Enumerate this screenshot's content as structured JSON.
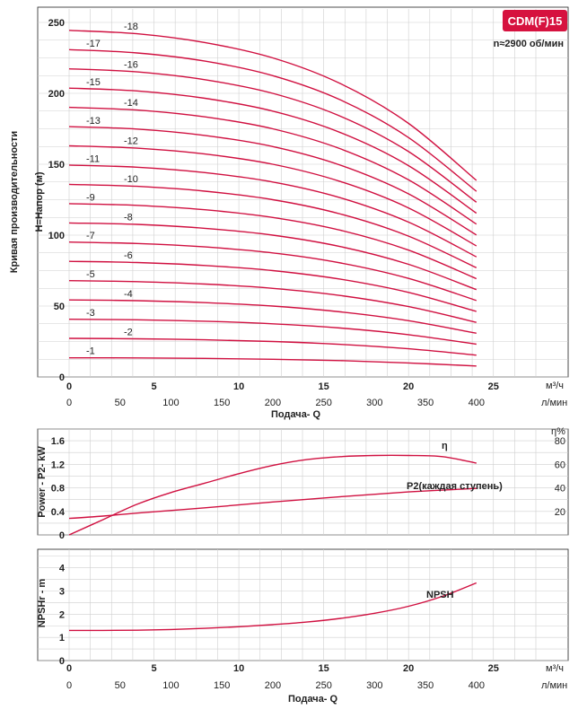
{
  "badge": {
    "model": "CDM(F)15",
    "color": "#d6123f"
  },
  "speed_note": "n≈2900 об/мин",
  "side_title": "Кривая производительности",
  "units": {
    "m3h": "м³/ч",
    "lmin": "л/мин",
    "eta": "η%"
  },
  "xlabel": "Подача- Q",
  "colors": {
    "curve": "#d01040",
    "grid": "#cfcfcf"
  },
  "chart_data": [
    {
      "type": "line",
      "ylabel": "H=Напор (м)",
      "x_m3h_ticks": [
        "0",
        "5",
        "10",
        "15",
        "20",
        "25"
      ],
      "x_lmin_ticks": [
        "0",
        "50",
        "100",
        "150",
        "200",
        "250",
        "300",
        "350",
        "400"
      ],
      "xlim_m3h": [
        0,
        27.5
      ],
      "y_ticks": [
        "0",
        "50",
        "100",
        "150",
        "200",
        "250"
      ],
      "ylim": [
        0,
        255
      ],
      "grid": true,
      "x": [
        0,
        4,
        8,
        12,
        16,
        20,
        24
      ],
      "series": [
        {
          "name": "-1",
          "values": [
            13.5,
            13.4,
            13.1,
            12.5,
            11.5,
            9.9,
            7.7
          ]
        },
        {
          "name": "-2",
          "values": [
            27.2,
            26.9,
            26.2,
            25.0,
            23.0,
            19.9,
            15.4
          ]
        },
        {
          "name": "-3",
          "values": [
            40.7,
            40.3,
            39.3,
            37.5,
            34.5,
            29.8,
            23.1
          ]
        },
        {
          "name": "-4",
          "values": [
            54.3,
            53.8,
            52.4,
            50.0,
            45.9,
            39.7,
            30.8
          ]
        },
        {
          "name": "-5",
          "values": [
            67.9,
            67.2,
            65.5,
            62.5,
            57.4,
            49.6,
            38.5
          ]
        },
        {
          "name": "-6",
          "values": [
            81.5,
            80.7,
            78.6,
            75.0,
            68.9,
            59.6,
            46.2
          ]
        },
        {
          "name": "-7",
          "values": [
            95.1,
            94.1,
            91.7,
            87.5,
            80.4,
            69.5,
            53.9
          ]
        },
        {
          "name": "-8",
          "values": [
            108.6,
            107.6,
            104.8,
            100.0,
            91.9,
            79.4,
            61.6
          ]
        },
        {
          "name": "-9",
          "values": [
            122.2,
            121.0,
            117.9,
            112.5,
            103.4,
            89.4,
            69.3
          ]
        },
        {
          "name": "-10",
          "values": [
            135.8,
            134.4,
            131.0,
            125.0,
            114.9,
            99.3,
            77.0
          ]
        },
        {
          "name": "-11",
          "values": [
            149.4,
            147.9,
            144.1,
            137.5,
            126.3,
            109.2,
            84.7
          ]
        },
        {
          "name": "-12",
          "values": [
            163.0,
            161.3,
            157.2,
            150.0,
            137.8,
            119.2,
            92.4
          ]
        },
        {
          "name": "-13",
          "values": [
            176.5,
            174.8,
            170.3,
            162.5,
            149.3,
            129.1,
            100.1
          ]
        },
        {
          "name": "-14",
          "values": [
            190.1,
            188.2,
            183.4,
            175.0,
            160.8,
            139.0,
            107.8
          ]
        },
        {
          "name": "-15",
          "values": [
            203.7,
            201.7,
            196.5,
            187.5,
            172.3,
            149.0,
            115.5
          ]
        },
        {
          "name": "-16",
          "values": [
            217.3,
            215.1,
            209.6,
            200.0,
            183.8,
            158.9,
            123.2
          ]
        },
        {
          "name": "-17",
          "values": [
            230.8,
            228.5,
            222.7,
            212.5,
            195.3,
            168.8,
            130.9
          ]
        },
        {
          "name": "-18",
          "values": [
            244.4,
            242.0,
            235.8,
            225.0,
            206.8,
            178.8,
            138.6
          ]
        }
      ]
    },
    {
      "type": "line",
      "ylabel": "Power - P2- kW",
      "y_ticks": [
        "0",
        "0.4",
        "0.8",
        "1.2",
        "1.6"
      ],
      "ylim": [
        0,
        1.8
      ],
      "y2_ticks": [
        "20",
        "40",
        "60",
        "80"
      ],
      "y2lim": [
        0,
        90
      ],
      "grid": true,
      "series": [
        {
          "name": "η",
          "axis": "right",
          "x": [
            0,
            2,
            4,
            6,
            8,
            10,
            12,
            14,
            16,
            18,
            20,
            22,
            24
          ],
          "values": [
            0,
            13,
            26,
            36,
            44,
            52,
            59,
            64,
            66.5,
            67.5,
            67.5,
            66.5,
            61
          ]
        },
        {
          "name": "P2(каждая ступень)",
          "axis": "left",
          "x": [
            0,
            2,
            4,
            8,
            12,
            16,
            20,
            24
          ],
          "values": [
            0.28,
            0.32,
            0.37,
            0.46,
            0.56,
            0.65,
            0.73,
            0.79
          ]
        }
      ]
    },
    {
      "type": "line",
      "ylabel": "NPSHr - m",
      "y_ticks": [
        "0",
        "1",
        "2",
        "3",
        "4"
      ],
      "ylim": [
        0,
        4.8
      ],
      "x_m3h_ticks": [
        "0",
        "5",
        "10",
        "15",
        "20",
        "25"
      ],
      "x_lmin_ticks": [
        "0",
        "50",
        "100",
        "150",
        "200",
        "250",
        "300",
        "350",
        "400"
      ],
      "grid": true,
      "series": [
        {
          "name": "NPSH",
          "x": [
            0,
            2,
            4,
            6,
            8,
            10,
            12,
            14,
            16,
            18,
            20,
            22,
            24
          ],
          "values": [
            1.3,
            1.3,
            1.31,
            1.34,
            1.39,
            1.46,
            1.55,
            1.66,
            1.82,
            2.04,
            2.34,
            2.77,
            3.35
          ]
        }
      ]
    }
  ]
}
